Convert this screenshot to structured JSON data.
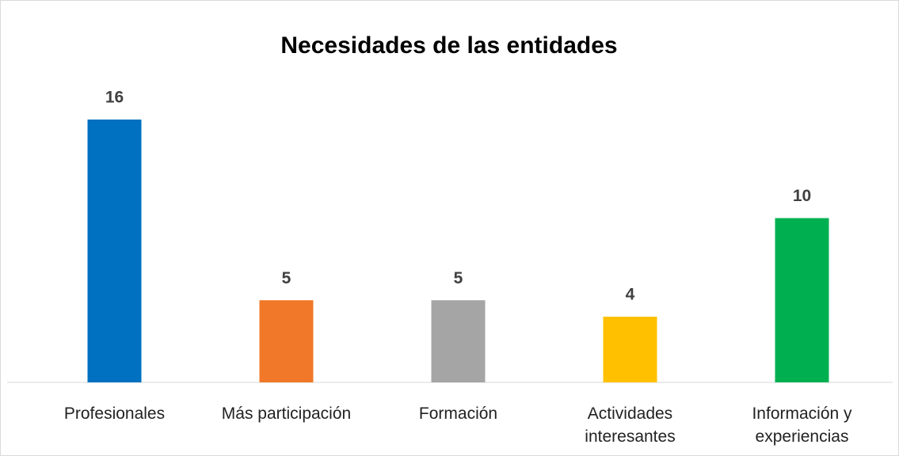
{
  "chart_data": {
    "type": "bar",
    "title": "Necesidades de las entidades",
    "categories": [
      "Profesionales",
      "Más participación",
      "Formación",
      "Actividades interesantes",
      "Información y experiencias"
    ],
    "series": [
      {
        "values": [
          16,
          5,
          5,
          4,
          10
        ]
      }
    ],
    "colors": [
      "#0070c0",
      "#f07828",
      "#a5a5a5",
      "#ffc000",
      "#00b050"
    ]
  }
}
